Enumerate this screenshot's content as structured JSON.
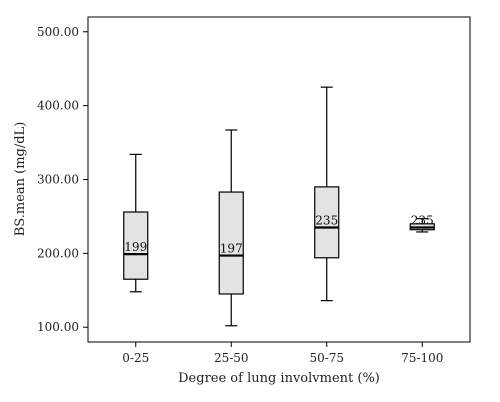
{
  "chart_data": {
    "type": "box",
    "xlabel": "Degree of lung involvment (%)",
    "ylabel": "BS.mean (mg/dL)",
    "ylim": [
      80,
      520
    ],
    "yticks": [
      "100.00",
      "200.00",
      "300.00",
      "400.00",
      "500.00"
    ],
    "ytick_values": [
      100,
      200,
      300,
      400,
      500
    ],
    "grid": false,
    "categories": [
      "0-25",
      "25-50",
      "50-75",
      "75-100"
    ],
    "boxes": [
      {
        "category": "0-25",
        "whisker_low": 148,
        "q1": 165,
        "median": 199,
        "q3": 256,
        "whisker_high": 334,
        "median_label": "199"
      },
      {
        "category": "25-50",
        "whisker_low": 102,
        "q1": 145,
        "median": 197,
        "q3": 283,
        "whisker_high": 367,
        "median_label": "197"
      },
      {
        "category": "50-75",
        "whisker_low": 136,
        "q1": 194,
        "median": 235,
        "q3": 290,
        "whisker_high": 425,
        "median_label": "235"
      },
      {
        "category": "75-100",
        "whisker_low": 229,
        "q1": 232,
        "median": 235,
        "q3": 240,
        "whisker_high": 247,
        "median_label": "235"
      }
    ],
    "box_fill": "#e3e3e3",
    "line_color": "#000000"
  }
}
